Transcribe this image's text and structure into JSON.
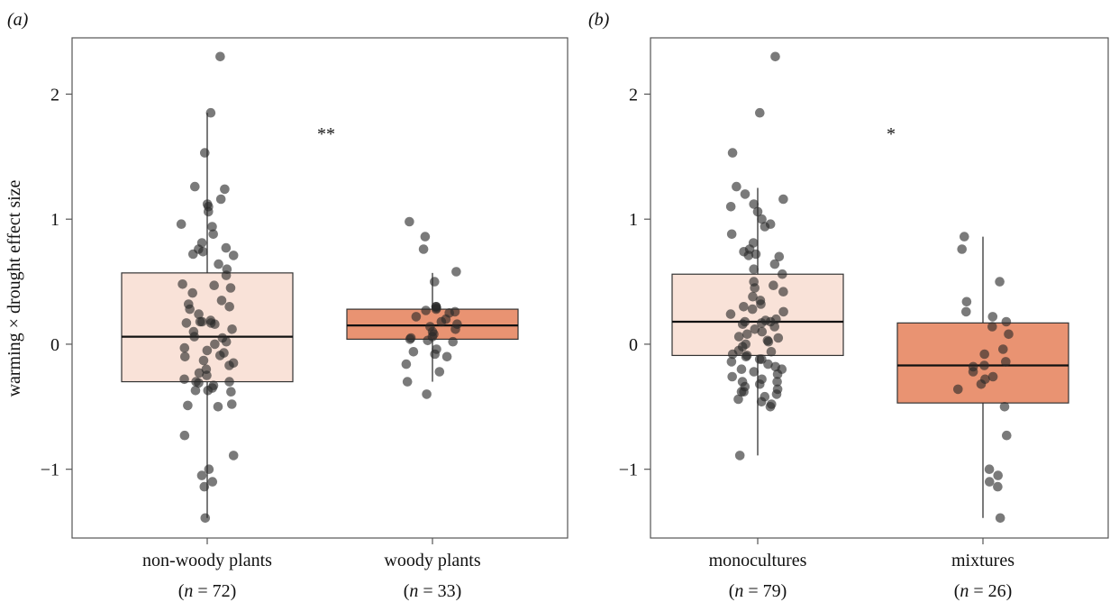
{
  "figure": {
    "ylabel": "warming × drought effect size"
  },
  "chart_data": [
    {
      "type": "box",
      "panel_label": "(a)",
      "ylabel": "warming × drought effect size",
      "ylim": [
        -1.55,
        2.45
      ],
      "yticks": [
        -1,
        0,
        1,
        2
      ],
      "ytick_labels": [
        "−1",
        "0",
        "1",
        "2"
      ],
      "significance": "**",
      "groups": [
        {
          "category": "non-woody plants",
          "n_label": "(n = 72)",
          "n_prefix": "(",
          "n_var": "n",
          "n_rest": " = 72)",
          "fill": "#f9e2d8",
          "box": {
            "whisker_low": -1.39,
            "q1": -0.3,
            "median": 0.06,
            "q3": 0.57,
            "whisker_high": 1.85
          },
          "points": [
            2.3,
            1.85,
            1.53,
            1.26,
            1.24,
            1.16,
            1.12,
            1.1,
            1.06,
            0.96,
            0.94,
            0.88,
            0.81,
            0.77,
            0.76,
            0.74,
            0.72,
            0.71,
            0.64,
            0.6,
            0.55,
            0.48,
            0.47,
            0.45,
            0.41,
            0.35,
            0.32,
            0.3,
            0.28,
            0.24,
            0.19,
            0.18,
            0.18,
            0.17,
            0.17,
            0.16,
            0.12,
            0.1,
            0.06,
            0.05,
            0.02,
            0.0,
            -0.03,
            -0.05,
            -0.07,
            -0.09,
            -0.1,
            -0.13,
            -0.15,
            -0.17,
            -0.2,
            -0.23,
            -0.25,
            -0.28,
            -0.3,
            -0.3,
            -0.31,
            -0.33,
            -0.35,
            -0.37,
            -0.37,
            -0.38,
            -0.48,
            -0.49,
            -0.5,
            -0.73,
            -0.89,
            -1.0,
            -1.05,
            -1.1,
            -1.14,
            -1.39
          ]
        },
        {
          "category": "woody plants",
          "n_label": "(n = 33)",
          "n_prefix": "(",
          "n_var": "n",
          "n_rest": " = 33)",
          "fill": "#e99372",
          "box": {
            "whisker_low": -0.3,
            "q1": 0.04,
            "median": 0.15,
            "q3": 0.28,
            "whisker_high": 0.57
          },
          "points": [
            0.98,
            0.86,
            0.76,
            0.58,
            0.5,
            0.3,
            0.3,
            0.29,
            0.28,
            0.27,
            0.26,
            0.25,
            0.22,
            0.2,
            0.18,
            0.16,
            0.14,
            0.12,
            0.1,
            0.08,
            0.06,
            0.05,
            0.04,
            0.03,
            0.02,
            -0.04,
            -0.06,
            -0.08,
            -0.1,
            -0.16,
            -0.22,
            -0.3,
            -0.4
          ]
        }
      ]
    },
    {
      "type": "box",
      "panel_label": "(b)",
      "ylim": [
        -1.55,
        2.45
      ],
      "yticks": [
        -1,
        0,
        1,
        2
      ],
      "ytick_labels": [
        "−1",
        "0",
        "1",
        "2"
      ],
      "significance": "*",
      "groups": [
        {
          "category": "monocultures",
          "n_label": "(n = 79)",
          "n_prefix": "(",
          "n_var": "n",
          "n_rest": " = 79)",
          "fill": "#f9e2d8",
          "box": {
            "whisker_low": -0.89,
            "q1": -0.09,
            "median": 0.18,
            "q3": 0.56,
            "whisker_high": 1.25
          },
          "points": [
            2.3,
            1.85,
            1.53,
            1.26,
            1.2,
            1.16,
            1.12,
            1.1,
            1.06,
            1.0,
            0.96,
            0.94,
            0.88,
            0.81,
            0.76,
            0.74,
            0.72,
            0.71,
            0.7,
            0.64,
            0.6,
            0.56,
            0.5,
            0.47,
            0.45,
            0.42,
            0.38,
            0.35,
            0.32,
            0.3,
            0.28,
            0.26,
            0.24,
            0.2,
            0.19,
            0.18,
            0.18,
            0.17,
            0.16,
            0.14,
            0.12,
            0.1,
            0.08,
            0.06,
            0.05,
            0.03,
            0.02,
            0.0,
            -0.02,
            -0.05,
            -0.06,
            -0.08,
            -0.09,
            -0.1,
            -0.12,
            -0.14,
            -0.16,
            -0.18,
            -0.2,
            -0.22,
            -0.24,
            -0.26,
            -0.28,
            -0.3,
            -0.32,
            -0.34,
            -0.36,
            -0.38,
            -0.4,
            -0.42,
            -0.44,
            -0.46,
            -0.48,
            -0.5,
            -0.38,
            -0.3,
            -0.2,
            -0.12,
            -0.89
          ]
        },
        {
          "category": "mixtures",
          "n_label": "(n = 26)",
          "n_prefix": "(",
          "n_var": "n",
          "n_rest": " = 26)",
          "fill": "#e99372",
          "box": {
            "whisker_low": -1.39,
            "q1": -0.47,
            "median": -0.17,
            "q3": 0.17,
            "whisker_high": 0.86
          },
          "points": [
            0.86,
            0.76,
            0.5,
            0.34,
            0.26,
            0.22,
            0.18,
            0.14,
            0.08,
            -0.04,
            -0.08,
            -0.14,
            -0.17,
            -0.18,
            -0.26,
            -0.28,
            -0.32,
            -0.36,
            -0.5,
            -0.73,
            -1.0,
            -1.05,
            -1.1,
            -1.14,
            -1.39,
            -0.22
          ]
        }
      ]
    }
  ]
}
